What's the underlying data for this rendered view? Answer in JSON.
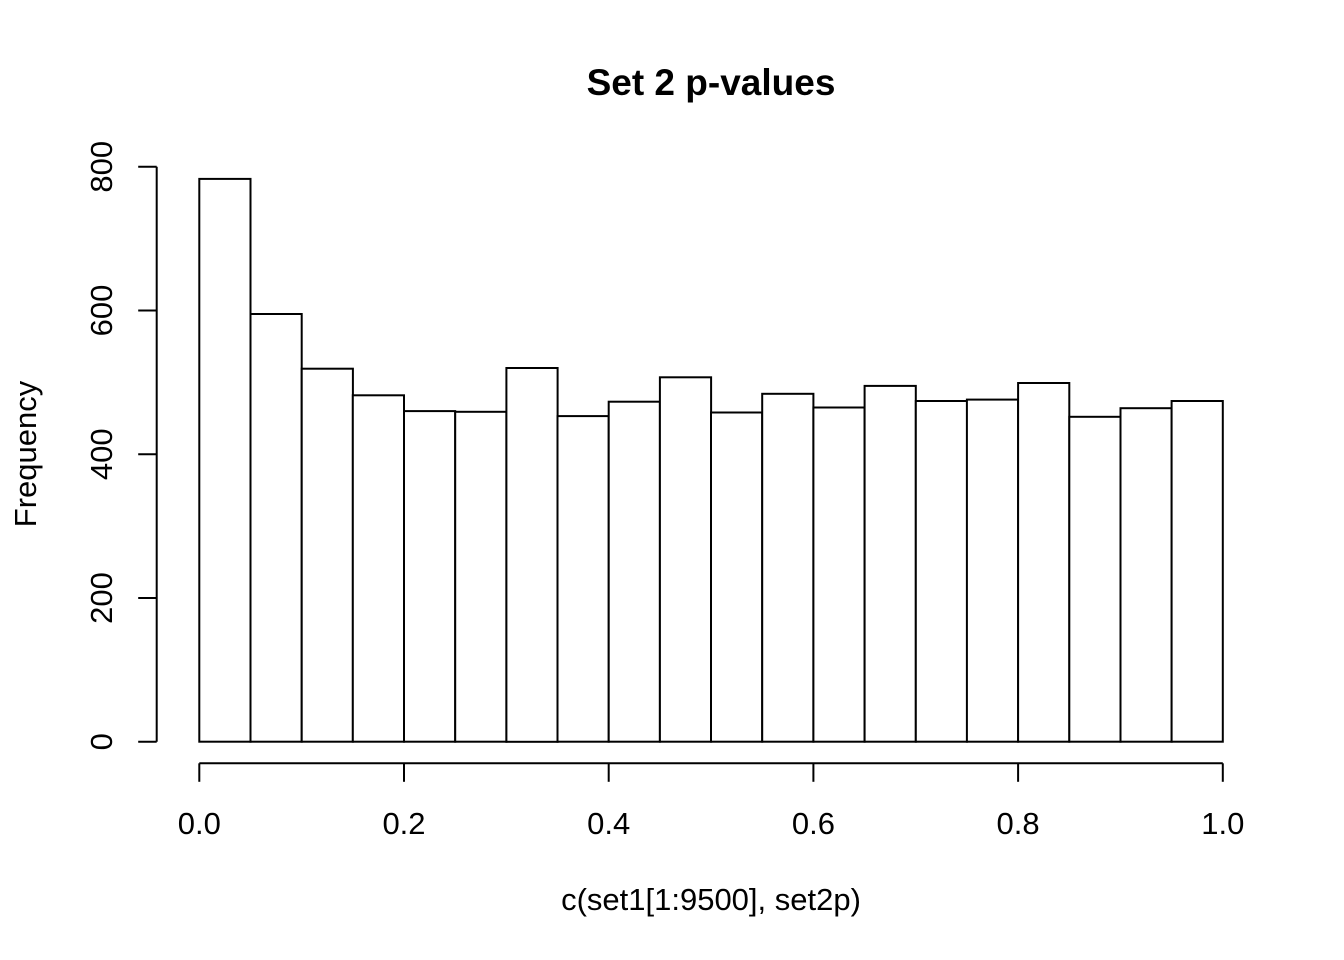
{
  "page": {
    "background_color": "#ffffff",
    "foreground_color": "#000000"
  },
  "chart_data": {
    "type": "bar",
    "subtype": "histogram",
    "title": "Set 2 p-values",
    "xlabel": "c(set1[1:9500], set2p)",
    "ylabel": "Frequency",
    "xlim": [
      0,
      1
    ],
    "ylim": [
      0,
      800
    ],
    "grid": false,
    "legend": "none",
    "bar_fill": "#ffffff",
    "bar_stroke": "#000000",
    "bin_width": 0.05,
    "bin_edges": [
      0.0,
      0.05,
      0.1,
      0.15,
      0.2,
      0.25,
      0.3,
      0.35,
      0.4,
      0.45,
      0.5,
      0.55,
      0.6,
      0.65,
      0.7,
      0.75,
      0.8,
      0.85,
      0.9,
      0.95,
      1.0
    ],
    "values": [
      783,
      595,
      519,
      482,
      460,
      459,
      520,
      453,
      473,
      507,
      458,
      484,
      465,
      495,
      474,
      476,
      499,
      452,
      464,
      474
    ],
    "x_ticks": {
      "values": [
        0.0,
        0.2,
        0.4,
        0.6,
        0.8,
        1.0
      ],
      "labels": [
        "0.0",
        "0.2",
        "0.4",
        "0.6",
        "0.8",
        "1.0"
      ]
    },
    "y_ticks": {
      "values": [
        0,
        200,
        400,
        600,
        800
      ],
      "labels": [
        "0",
        "200",
        "400",
        "600",
        "800"
      ]
    }
  }
}
